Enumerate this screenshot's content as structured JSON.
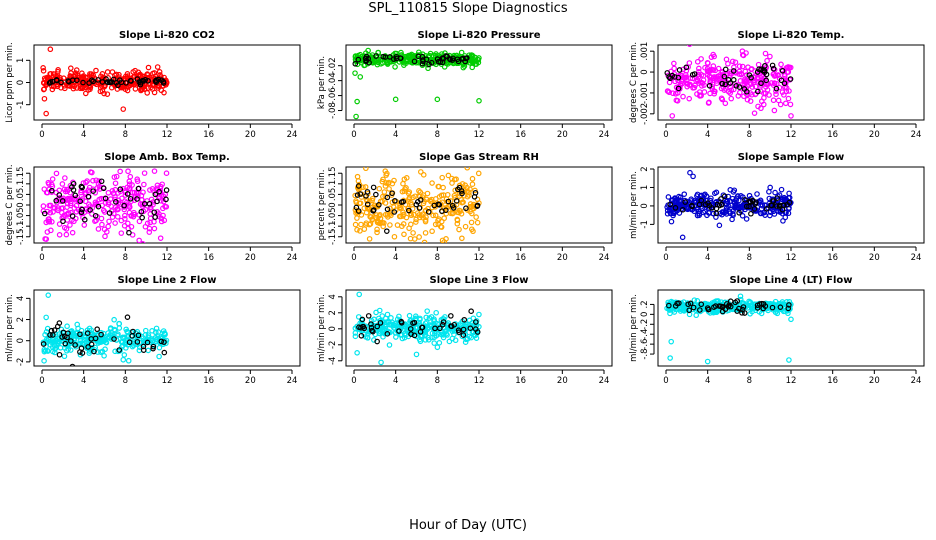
{
  "figure": {
    "title": "SPL_110815  Slope Diagnostics",
    "xlabel": "Hour of Day (UTC)"
  },
  "chart_data": [
    {
      "type": "scatter",
      "title": "Slope Li-820 CO2",
      "ylabel": "Licor ppm per min.",
      "xlim": [
        0,
        24
      ],
      "xticks": [
        0,
        4,
        8,
        12,
        16,
        20,
        24
      ],
      "ylim": [
        -1.6,
        1.6
      ],
      "yticks": [
        -1,
        0,
        1
      ],
      "color": "#ff0000",
      "spread": 0.45,
      "ref_spread": 0.12,
      "center": 0.05,
      "x_range": [
        0.1,
        12.0
      ],
      "outliers": [
        [
          0.8,
          1.5
        ],
        [
          0.4,
          -1.4
        ],
        [
          7.8,
          -1.2
        ],
        [
          5.6,
          -0.4
        ]
      ]
    },
    {
      "type": "scatter",
      "title": "Slope Li-820 Pressure",
      "ylabel": "kPa per min.",
      "xlim": [
        0,
        24
      ],
      "xticks": [
        0,
        4,
        8,
        12,
        16,
        20,
        24
      ],
      "ylim": [
        -0.09,
        0.005
      ],
      "yticks": [
        -0.08,
        -0.06,
        -0.04,
        -0.02
      ],
      "color": "#00cc00",
      "spread": 0.008,
      "ref_spread": 0.006,
      "center": -0.012,
      "x_range": [
        0.1,
        12.0
      ],
      "outliers": [
        [
          0.2,
          -0.088
        ],
        [
          0.3,
          -0.068
        ],
        [
          4.0,
          -0.065
        ],
        [
          8.0,
          -0.065
        ],
        [
          12.0,
          -0.067
        ],
        [
          0.6,
          -0.035
        ],
        [
          0.1,
          -0.03
        ]
      ]
    },
    {
      "type": "scatter",
      "title": "Slope Li-820 Temp.",
      "ylabel": "degrees C per min.",
      "xlim": [
        0,
        24
      ],
      "xticks": [
        0,
        4,
        8,
        12,
        16,
        20,
        24
      ],
      "ylim": [
        -0.0022,
        0.0012
      ],
      "yticks": [
        -0.002,
        -0.001,
        0,
        0.001
      ],
      "color": "#ff00ff",
      "spread": 0.0011,
      "ref_spread": 0.0008,
      "center": -0.0004,
      "x_range": [
        0.1,
        12.0
      ],
      "outliers": [
        [
          12.0,
          -0.0021
        ],
        [
          0.6,
          -0.0021
        ]
      ]
    },
    {
      "type": "scatter",
      "title": "Slope Amb. Box Temp.",
      "ylabel": "degrees C per min.",
      "xlim": [
        0,
        24
      ],
      "xticks": [
        0,
        4,
        8,
        12,
        16,
        20,
        24
      ],
      "ylim": [
        -0.17,
        0.17
      ],
      "yticks": [
        -0.15,
        -0.1,
        -0.05,
        0,
        0.05,
        0.1,
        0.15
      ],
      "color": "#ff00ff",
      "spread": 0.14,
      "ref_spread": 0.1,
      "center": 0.0,
      "x_range": [
        0.1,
        12.0
      ],
      "outliers": [
        [
          0.3,
          -0.16
        ],
        [
          10.8,
          0.16
        ]
      ]
    },
    {
      "type": "scatter",
      "title": "Slope Gas Stream RH",
      "ylabel": "percent per min.",
      "xlim": [
        0,
        24
      ],
      "xticks": [
        0,
        4,
        8,
        12,
        16,
        20,
        24
      ],
      "ylim": [
        -0.17,
        0.17
      ],
      "yticks": [
        -0.15,
        -0.1,
        -0.05,
        0,
        0.05,
        0.1,
        0.15
      ],
      "color": "#ffa500",
      "spread": 0.15,
      "ref_spread": 0.1,
      "center": 0.0,
      "x_range": [
        0.1,
        12.0
      ],
      "outliers": [
        [
          1.5,
          -0.16
        ],
        [
          3.0,
          0.16
        ]
      ]
    },
    {
      "type": "scatter",
      "title": "Slope Sample Flow",
      "ylabel": "ml/min per min.",
      "xlim": [
        0,
        24
      ],
      "xticks": [
        0,
        4,
        8,
        12,
        16,
        20,
        24
      ],
      "ylim": [
        -1.9,
        2.0
      ],
      "yticks": [
        -1,
        0,
        1,
        2
      ],
      "color": "#0000cc",
      "spread": 0.7,
      "ref_spread": 0.4,
      "center": 0.0,
      "x_range": [
        0.1,
        12.0
      ],
      "outliers": [
        [
          2.3,
          1.8
        ],
        [
          2.6,
          1.6
        ],
        [
          1.6,
          -1.7
        ],
        [
          10.0,
          1.0
        ]
      ]
    },
    {
      "type": "scatter",
      "title": "Slope Line 2 Flow",
      "ylabel": "ml/min per min.",
      "xlim": [
        0,
        24
      ],
      "xticks": [
        0,
        4,
        8,
        12,
        16,
        20,
        24
      ],
      "ylim": [
        -2.2,
        4.6
      ],
      "yticks": [
        -2,
        0,
        2,
        4
      ],
      "color": "#00e5ee",
      "spread": 1.2,
      "ref_spread": 1.5,
      "center": 0.1,
      "x_range": [
        0.1,
        12.0
      ],
      "outliers": [
        [
          0.6,
          4.3
        ],
        [
          0.2,
          -1.9
        ],
        [
          0.4,
          2.2
        ],
        [
          7.8,
          -1.8
        ]
      ]
    },
    {
      "type": "scatter",
      "title": "Slope Line 3 Flow",
      "ylabel": "ml/min per min.",
      "xlim": [
        0,
        24
      ],
      "xticks": [
        0,
        4,
        8,
        12,
        16,
        20,
        24
      ],
      "ylim": [
        -4.4,
        4.6
      ],
      "yticks": [
        -4,
        -2,
        0,
        2,
        4
      ],
      "color": "#00e5ee",
      "spread": 1.6,
      "ref_spread": 1.6,
      "center": 0.1,
      "x_range": [
        0.1,
        12.0
      ],
      "outliers": [
        [
          0.5,
          4.3
        ],
        [
          2.6,
          -4.2
        ],
        [
          0.3,
          -3.0
        ],
        [
          6.0,
          -3.2
        ]
      ]
    },
    {
      "type": "scatter",
      "title": "Slope Line 4 (LT) Flow",
      "ylabel": "ml/min per min.",
      "xlim": [
        0,
        24
      ],
      "xticks": [
        0,
        4,
        8,
        12,
        16,
        20,
        24
      ],
      "ylim": [
        -1.0,
        0.45
      ],
      "yticks": [
        -0.8,
        -0.6,
        -0.4,
        -0.2,
        0,
        0.2
      ],
      "color": "#00e5ee",
      "spread": 0.12,
      "ref_spread": 0.1,
      "center": 0.15,
      "x_range": [
        0.1,
        12.0
      ],
      "outliers": [
        [
          0.4,
          -0.88
        ],
        [
          4.0,
          -0.95
        ],
        [
          11.8,
          -0.92
        ],
        [
          0.5,
          -0.55
        ],
        [
          12.0,
          -0.1
        ]
      ]
    }
  ]
}
